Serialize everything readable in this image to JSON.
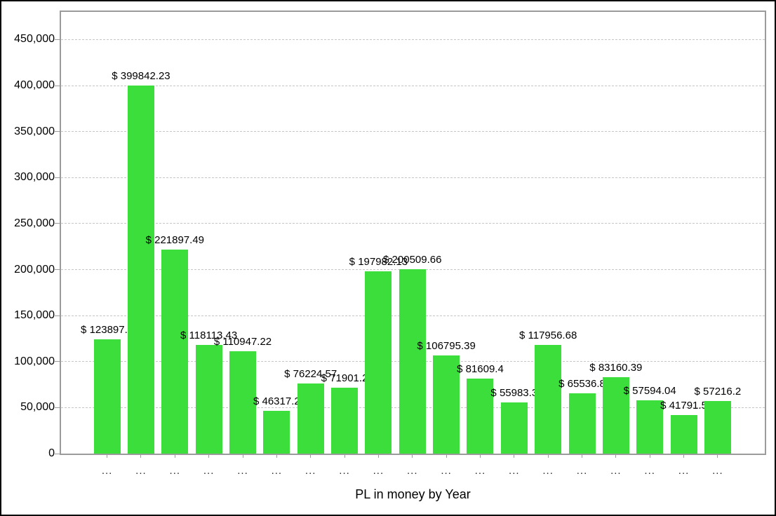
{
  "window": {
    "background": "#ffffff",
    "border_color": "#000000"
  },
  "chart_data": {
    "type": "bar",
    "title": "",
    "xlabel": "PL in money by Year",
    "ylabel": "",
    "ylim": [
      0,
      450000
    ],
    "y_tick_step": 50000,
    "grid": "horizontal-dashed",
    "legend": "none",
    "bar_color": "#3CDE3C",
    "label_prefix": "$ ",
    "categories": [
      "...",
      "...",
      "...",
      "...",
      "...",
      "...",
      "...",
      "...",
      "...",
      "...",
      "...",
      "...",
      "...",
      "...",
      "...",
      "...",
      "...",
      "...",
      "..."
    ],
    "values": [
      123897.0,
      399842.23,
      221897.49,
      118113.43,
      110947.22,
      46317.2,
      76224.57,
      71901.2,
      197982.13,
      200509.66,
      106795.39,
      81609.4,
      55983.3,
      117956.68,
      65536.8,
      83160.39,
      57594.04,
      41791.5,
      57216.2
    ],
    "bar_labels": [
      "$ 123897.0",
      "$ 399842.23",
      "$ 221897.49",
      "$ 118113.43",
      "$ 110947.22",
      "$ 46317.2",
      "$ 76224.57",
      "$ 71901.2",
      "$ 197982.13",
      "$ 200509.66",
      "$ 106795.39",
      "$ 81609.4",
      "$ 55983.3",
      "$ 117956.68",
      "$ 65536.8",
      "$ 83160.39",
      "$ 57594.04",
      "$ 41791.5",
      "$ 57216.2"
    ],
    "y_tick_labels": [
      "0",
      "50,000",
      "100,000",
      "150,000",
      "200,000",
      "250,000",
      "300,000",
      "350,000",
      "400,000",
      "450,000"
    ]
  }
}
